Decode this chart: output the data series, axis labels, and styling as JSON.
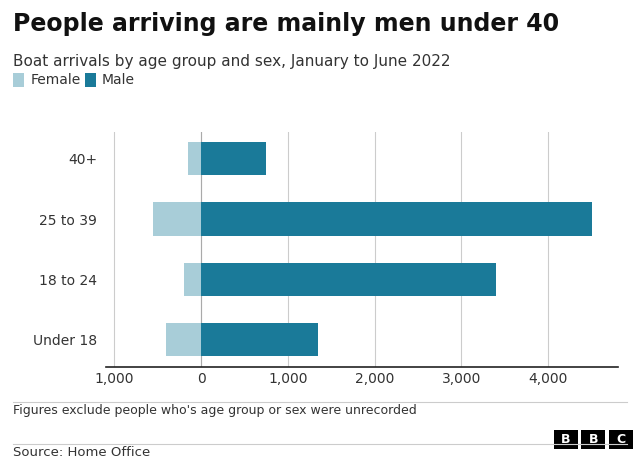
{
  "title": "People arriving are mainly men under 40",
  "subtitle": "Boat arrivals by age group and sex, January to June 2022",
  "footnote": "Figures exclude people who's age group or sex were unrecorded",
  "source": "Source: Home Office",
  "categories": [
    "Under 18",
    "18 to 24",
    "25 to 39",
    "40+"
  ],
  "female_values": [
    -400,
    -200,
    -550,
    -150
  ],
  "male_values": [
    1350,
    3400,
    4500,
    750
  ],
  "female_color": "#a8cdd8",
  "male_color": "#1a7a99",
  "background_color": "#ffffff",
  "xlim": [
    -1100,
    4800
  ],
  "xticks": [
    -1000,
    0,
    1000,
    2000,
    3000,
    4000
  ],
  "xtick_labels": [
    "1,000",
    "0",
    "1,000",
    "2,000",
    "3,000",
    "4,000"
  ],
  "legend_female": "Female",
  "legend_male": "Male",
  "bar_height": 0.55,
  "title_fontsize": 17,
  "subtitle_fontsize": 11,
  "tick_fontsize": 10,
  "legend_fontsize": 10,
  "footnote_fontsize": 9,
  "source_fontsize": 9.5,
  "grid_color": "#cccccc",
  "axis_color": "#222222",
  "text_color": "#333333",
  "bbc_color": "#ffffff",
  "bbc_bg": "#000000"
}
